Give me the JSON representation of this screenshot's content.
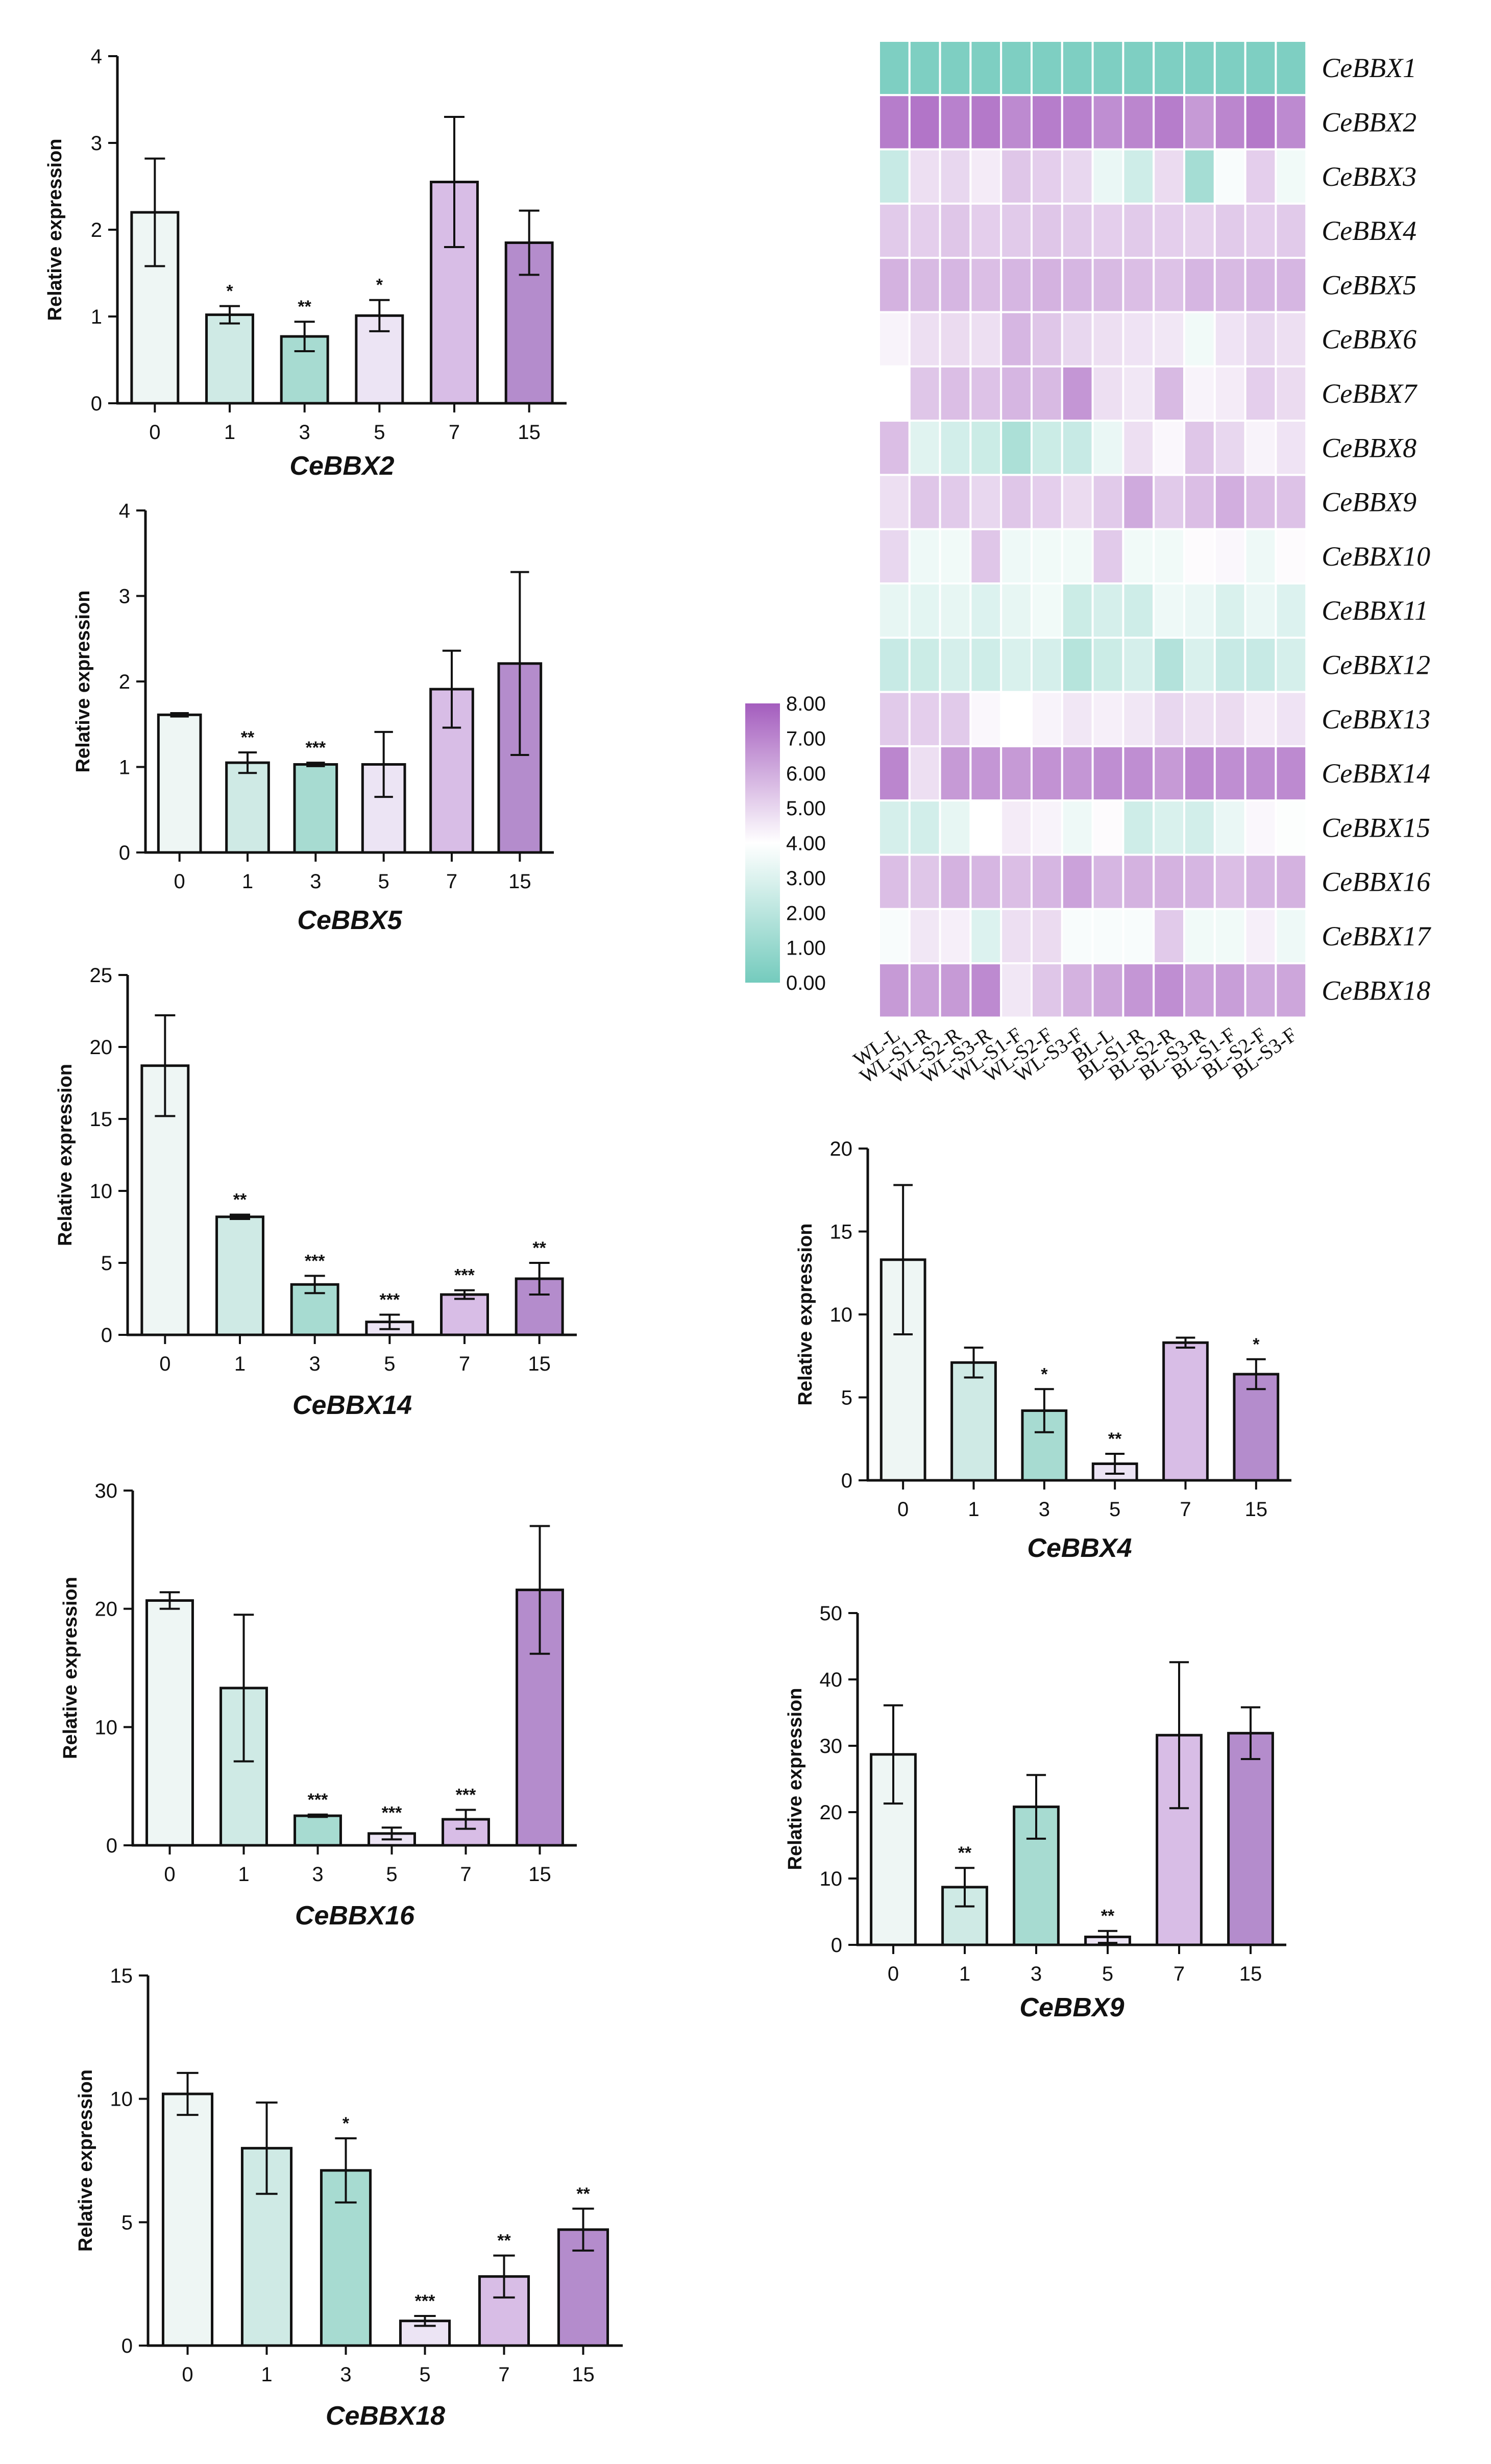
{
  "colors": {
    "bars": [
      "#eef6f4",
      "#cfeae5",
      "#a7dbd1",
      "#ece4f4",
      "#d8bde6",
      "#b48ccc"
    ],
    "heat_low": "#74cbbd",
    "heat_mid": "#ffffff",
    "heat_high": "#a45dbe",
    "axis": "#111111"
  },
  "chart_data": [
    {
      "type": "bar",
      "title": "CeBBX2",
      "ylabel": "Relative expression",
      "categories": [
        "0",
        "1",
        "3",
        "5",
        "7",
        "15"
      ],
      "values": [
        2.2,
        1.02,
        0.77,
        1.01,
        2.55,
        1.85
      ],
      "errors": [
        0.62,
        0.1,
        0.17,
        0.18,
        0.75,
        0.37
      ],
      "significance": [
        "",
        "*",
        "**",
        "*",
        "",
        ""
      ],
      "ylim": [
        0,
        4
      ],
      "yticks": [
        "0",
        "1",
        "2",
        "3",
        "4"
      ]
    },
    {
      "type": "bar",
      "title": "CeBBX5",
      "ylabel": "Relative expression",
      "categories": [
        "0",
        "1",
        "3",
        "5",
        "7",
        "15"
      ],
      "values": [
        1.61,
        1.05,
        1.03,
        1.03,
        1.91,
        2.21
      ],
      "errors": [
        0.02,
        0.12,
        0.02,
        0.38,
        0.45,
        1.07
      ],
      "significance": [
        "",
        "**",
        "***",
        "",
        "",
        ""
      ],
      "ylim": [
        0,
        4
      ],
      "yticks": [
        "0",
        "1",
        "2",
        "3",
        "4"
      ]
    },
    {
      "type": "bar",
      "title": "CeBBX14",
      "ylabel": "Relative expression",
      "categories": [
        "0",
        "1",
        "3",
        "5",
        "7",
        "15"
      ],
      "values": [
        18.7,
        8.2,
        3.5,
        0.9,
        2.8,
        3.9
      ],
      "errors": [
        3.5,
        0.15,
        0.6,
        0.5,
        0.3,
        1.1
      ],
      "significance": [
        "",
        "**",
        "***",
        "***",
        "***",
        "**"
      ],
      "ylim": [
        0,
        25
      ],
      "yticks": [
        "0",
        "5",
        "10",
        "15",
        "20",
        "25"
      ]
    },
    {
      "type": "bar",
      "title": "CeBBX16",
      "ylabel": "Relative expression",
      "categories": [
        "0",
        "1",
        "3",
        "5",
        "7",
        "15"
      ],
      "values": [
        20.7,
        13.3,
        2.5,
        1.0,
        2.2,
        21.6
      ],
      "errors": [
        0.7,
        6.2,
        0.1,
        0.5,
        0.8,
        5.4
      ],
      "significance": [
        "",
        "",
        "***",
        "***",
        "***",
        ""
      ],
      "ylim": [
        0,
        30
      ],
      "yticks": [
        "0",
        "10",
        "20",
        "30"
      ]
    },
    {
      "type": "bar",
      "title": "CeBBX18",
      "ylabel": "Relative expression",
      "categories": [
        "0",
        "1",
        "3",
        "5",
        "7",
        "15"
      ],
      "values": [
        10.2,
        8.0,
        7.1,
        1.0,
        2.8,
        4.7
      ],
      "errors": [
        0.85,
        1.85,
        1.3,
        0.2,
        0.85,
        0.85
      ],
      "significance": [
        "",
        "",
        "*",
        "***",
        "**",
        "**"
      ],
      "ylim": [
        0,
        15
      ],
      "yticks": [
        "0",
        "5",
        "10",
        "15"
      ]
    },
    {
      "type": "bar",
      "title": "CeBBX4",
      "ylabel": "Relative expression",
      "categories": [
        "0",
        "1",
        "3",
        "5",
        "7",
        "15"
      ],
      "values": [
        13.3,
        7.1,
        4.2,
        1.0,
        8.3,
        6.4
      ],
      "errors": [
        4.5,
        0.9,
        1.3,
        0.6,
        0.3,
        0.9
      ],
      "significance": [
        "",
        "",
        "*",
        "**",
        "",
        "*"
      ],
      "ylim": [
        0,
        20
      ],
      "yticks": [
        "0",
        "5",
        "10",
        "15",
        "20"
      ]
    },
    {
      "type": "bar",
      "title": "CeBBX9",
      "ylabel": "Relative expression",
      "categories": [
        "0",
        "1",
        "3",
        "5",
        "7",
        "15"
      ],
      "values": [
        28.7,
        8.7,
        20.8,
        1.2,
        31.6,
        31.9
      ],
      "errors": [
        7.4,
        2.9,
        4.8,
        0.9,
        11.0,
        3.9
      ],
      "significance": [
        "",
        "**",
        "",
        "**",
        "",
        ""
      ],
      "ylim": [
        0,
        50
      ],
      "yticks": [
        "0",
        "10",
        "20",
        "30",
        "40",
        "50"
      ]
    },
    {
      "type": "heatmap",
      "rows": [
        "CeBBX1",
        "CeBBX2",
        "CeBBX3",
        "CeBBX4",
        "CeBBX5",
        "CeBBX6",
        "CeBBX7",
        "CeBBX8",
        "CeBBX9",
        "CeBBX10",
        "CeBBX11",
        "CeBBX12",
        "CeBBX13",
        "CeBBX14",
        "CeBBX15",
        "CeBBX16",
        "CeBBX17",
        "CeBBX18"
      ],
      "columns": [
        "WL-L",
        "WL-S1-R",
        "WL-S2-R",
        "WL-S3-R",
        "WL-S1-F",
        "WL-S2-F",
        "WL-S3-F",
        "BL-L",
        "BL-S1-R",
        "BL-S2-R",
        "BL-S3-R",
        "BL-S1-F",
        "BL-S2-F",
        "BL-S3-F"
      ],
      "values": [
        [
          0.3,
          0.3,
          0.3,
          0.3,
          0.3,
          0.3,
          0.3,
          0.3,
          0.3,
          0.3,
          0.3,
          0.3,
          0.3,
          0.3
        ],
        [
          7.2,
          7.4,
          7.1,
          7.3,
          6.9,
          7.2,
          7.1,
          6.8,
          7.0,
          7.2,
          6.5,
          7.0,
          7.3,
          6.9
        ],
        [
          2.4,
          4.8,
          5.0,
          4.5,
          5.4,
          5.2,
          5.0,
          3.4,
          2.6,
          4.9,
          1.4,
          3.8,
          5.2,
          3.6
        ],
        [
          5.3,
          5.2,
          5.4,
          5.2,
          5.3,
          5.4,
          5.3,
          5.2,
          5.3,
          5.2,
          5.1,
          5.3,
          5.2,
          5.3
        ],
        [
          5.9,
          5.7,
          5.8,
          5.6,
          5.8,
          5.9,
          5.8,
          5.7,
          5.6,
          5.5,
          5.8,
          5.7,
          5.8,
          5.8
        ],
        [
          4.3,
          4.8,
          4.9,
          4.8,
          5.8,
          5.4,
          5.0,
          4.8,
          4.7,
          4.6,
          3.6,
          4.7,
          5.0,
          4.8
        ],
        [
          4.0,
          5.4,
          5.6,
          5.5,
          5.8,
          5.7,
          6.6,
          4.8,
          4.6,
          5.7,
          4.3,
          4.5,
          5.2,
          4.9
        ],
        [
          5.6,
          3.1,
          2.7,
          2.5,
          1.6,
          2.5,
          2.4,
          3.4,
          4.8,
          4.2,
          5.4,
          5.0,
          4.3,
          4.7
        ],
        [
          4.8,
          5.4,
          5.3,
          5.0,
          5.4,
          5.2,
          4.9,
          5.3,
          6.1,
          5.3,
          5.6,
          6.0,
          5.6,
          5.5
        ],
        [
          5.0,
          3.5,
          3.6,
          5.4,
          3.5,
          3.6,
          3.6,
          5.3,
          3.6,
          3.6,
          4.1,
          4.2,
          3.5,
          4.1
        ],
        [
          3.3,
          3.2,
          3.3,
          3.0,
          3.3,
          3.6,
          2.5,
          2.8,
          2.6,
          3.5,
          3.4,
          2.9,
          3.4,
          3.0
        ],
        [
          2.4,
          2.5,
          2.8,
          2.6,
          2.9,
          2.8,
          1.9,
          2.5,
          2.8,
          1.8,
          2.9,
          2.4,
          2.4,
          2.8
        ],
        [
          5.3,
          5.2,
          5.3,
          4.2,
          4.0,
          4.3,
          4.6,
          4.4,
          4.6,
          5.0,
          4.8,
          4.9,
          4.5,
          4.7
        ],
        [
          7.0,
          4.8,
          6.5,
          6.6,
          6.5,
          6.7,
          6.6,
          6.8,
          6.8,
          6.5,
          6.9,
          6.8,
          6.8,
          6.9
        ],
        [
          2.8,
          2.7,
          3.3,
          4.0,
          4.5,
          4.3,
          3.5,
          4.1,
          2.6,
          2.9,
          2.7,
          3.4,
          4.2,
          3.9
        ],
        [
          5.6,
          5.4,
          5.9,
          5.8,
          5.6,
          5.8,
          6.3,
          5.8,
          5.9,
          5.9,
          5.8,
          5.6,
          5.8,
          5.9
        ],
        [
          3.8,
          4.6,
          4.4,
          3.0,
          4.8,
          4.9,
          3.8,
          3.8,
          3.8,
          5.3,
          3.6,
          3.6,
          4.4,
          3.5
        ],
        [
          6.5,
          6.3,
          6.5,
          6.9,
          4.6,
          5.4,
          5.9,
          6.2,
          6.6,
          6.8,
          6.3,
          6.4,
          6.1,
          6.2
        ]
      ],
      "legend": {
        "min": 0,
        "max": 8,
        "ticks": [
          "0.00",
          "1.00",
          "2.00",
          "3.00",
          "4.00",
          "5.00",
          "6.00",
          "7.00",
          "8.00"
        ]
      }
    }
  ]
}
